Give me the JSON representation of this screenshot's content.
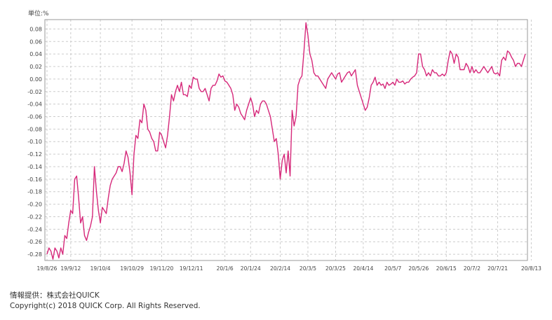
{
  "unit_label": "単位:%",
  "footer": {
    "provider": "情報提供：株式会社QUICK",
    "copyright": "Copyright(c) 2018 QUICK Corp. All Rights Reserved."
  },
  "colors": {
    "line": "#d6287a",
    "grid": "#cccccc",
    "axis": "#999999"
  },
  "chart_data": {
    "type": "line",
    "title": "",
    "xlabel": "",
    "ylabel": "",
    "ylim": [
      -0.29,
      0.095
    ],
    "grid": true,
    "yticks": [
      0.08,
      0.06,
      0.04,
      0.02,
      0.0,
      -0.02,
      -0.04,
      -0.06,
      -0.08,
      -0.1,
      -0.12,
      -0.14,
      -0.16,
      -0.18,
      -0.2,
      -0.22,
      -0.24,
      -0.26,
      -0.28
    ],
    "ytick_labels": [
      "0.08",
      "0.06",
      "0.04",
      "0.02",
      "0.00",
      "-0.02",
      "-0.04",
      "-0.06",
      "-0.08",
      "-0.10",
      "-0.12",
      "-0.14",
      "-0.16",
      "-0.18",
      "-0.20",
      "-0.22",
      "-0.24",
      "-0.26",
      "-0.28"
    ],
    "xtick_labels": [
      "19/8/26",
      "19/9/12",
      "19/10/4",
      "19/10/29",
      "19/11/20",
      "19/12/11",
      "20/1/6",
      "20/1/24",
      "20/2/14",
      "20/3/5",
      "20/3/25",
      "20/4/14",
      "20/5/7",
      "20/5/26",
      "20/6/15",
      "20/7/2",
      "20/7/21",
      "20/8/13"
    ],
    "xtick_index": [
      0,
      12,
      27,
      43,
      58,
      73,
      90,
      103,
      118,
      132,
      146,
      160,
      175,
      188,
      202,
      215,
      228,
      245
    ],
    "series": [
      {
        "values": [
          -0.28,
          -0.27,
          -0.275,
          -0.288,
          -0.27,
          -0.275,
          -0.286,
          -0.27,
          -0.28,
          -0.25,
          -0.255,
          -0.23,
          -0.21,
          -0.215,
          -0.16,
          -0.155,
          -0.19,
          -0.23,
          -0.22,
          -0.25,
          -0.258,
          -0.245,
          -0.235,
          -0.22,
          -0.14,
          -0.18,
          -0.21,
          -0.23,
          -0.205,
          -0.21,
          -0.215,
          -0.19,
          -0.17,
          -0.16,
          -0.155,
          -0.15,
          -0.14,
          -0.14,
          -0.148,
          -0.135,
          -0.115,
          -0.125,
          -0.15,
          -0.185,
          -0.12,
          -0.09,
          -0.095,
          -0.065,
          -0.07,
          -0.04,
          -0.05,
          -0.08,
          -0.085,
          -0.095,
          -0.1,
          -0.115,
          -0.115,
          -0.085,
          -0.09,
          -0.1,
          -0.11,
          -0.09,
          -0.06,
          -0.025,
          -0.035,
          -0.02,
          -0.01,
          -0.02,
          -0.005,
          -0.025,
          -0.025,
          -0.028,
          -0.01,
          -0.015,
          0.003,
          0.0,
          0.0,
          -0.015,
          -0.02,
          -0.02,
          -0.015,
          -0.025,
          -0.035,
          -0.015,
          -0.01,
          -0.01,
          -0.003,
          0.008,
          0.003,
          0.005,
          -0.003,
          -0.005,
          -0.01,
          -0.015,
          -0.025,
          -0.05,
          -0.04,
          -0.045,
          -0.055,
          -0.06,
          -0.065,
          -0.05,
          -0.04,
          -0.03,
          -0.04,
          -0.06,
          -0.05,
          -0.055,
          -0.04,
          -0.035,
          -0.035,
          -0.04,
          -0.05,
          -0.06,
          -0.08,
          -0.1,
          -0.095,
          -0.12,
          -0.16,
          -0.13,
          -0.12,
          -0.15,
          -0.115,
          -0.155,
          -0.05,
          -0.075,
          -0.06,
          -0.01,
          0.0,
          0.005,
          0.045,
          0.09,
          0.07,
          0.04,
          0.03,
          0.01,
          0.005,
          0.005,
          0.0,
          -0.005,
          -0.01,
          -0.015,
          0.0,
          0.005,
          0.01,
          0.005,
          0.0,
          0.008,
          0.01,
          -0.005,
          0.0,
          0.005,
          0.01,
          0.012,
          0.005,
          0.01,
          0.015,
          -0.01,
          -0.02,
          -0.03,
          -0.04,
          -0.05,
          -0.045,
          -0.03,
          -0.01,
          -0.005,
          0.003,
          -0.01,
          -0.005,
          -0.01,
          -0.008,
          -0.015,
          -0.005,
          -0.01,
          -0.008,
          -0.005,
          -0.01,
          0.0,
          -0.005,
          -0.005,
          -0.003,
          -0.008,
          -0.005,
          -0.005,
          0.0,
          0.003,
          0.005,
          0.01,
          0.04,
          0.04,
          0.02,
          0.015,
          0.005,
          0.01,
          0.005,
          0.015,
          0.01,
          0.01,
          0.005,
          0.005,
          0.008,
          0.005,
          0.01,
          0.03,
          0.045,
          0.04,
          0.025,
          0.04,
          0.035,
          0.015,
          0.015,
          0.015,
          0.025,
          0.02,
          0.01,
          0.02,
          0.01,
          0.015,
          0.01,
          0.01,
          0.015,
          0.02,
          0.015,
          0.01,
          0.015,
          0.02,
          0.01,
          0.008,
          0.01,
          0.005,
          0.03,
          0.035,
          0.03,
          0.045,
          0.042,
          0.035,
          0.03,
          0.02,
          0.025,
          0.025,
          0.02,
          0.03,
          0.04
        ]
      }
    ]
  }
}
